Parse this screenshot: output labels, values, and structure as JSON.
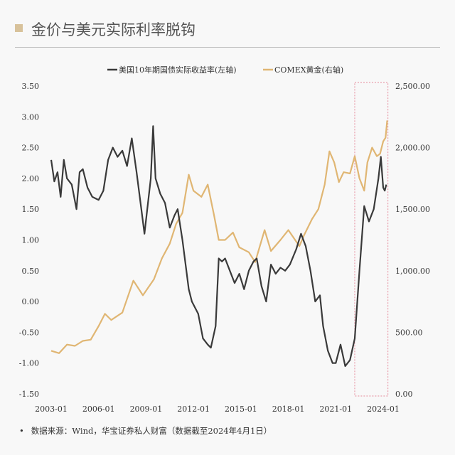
{
  "header": {
    "title": "金价与美元实际利率脱钩"
  },
  "footer": {
    "bullet": "•",
    "source": "数据来源：Wind，华宝证券私人财富（数据截至2024年4月1日）"
  },
  "colors": {
    "real_rate": "#3a3a3a",
    "gold": "#e0b673",
    "highlight": "#e58a9a",
    "accent": "#d8c29b"
  },
  "chart_data": {
    "type": "line",
    "title": "金价与美元实际利率脱钩",
    "x_ticks": [
      "2003-01",
      "2006-01",
      "2009-01",
      "2012-01",
      "2015-01",
      "2018-01",
      "2021-01",
      "2024-01"
    ],
    "x_tick_values": [
      2003,
      2006,
      2009,
      2012,
      2015,
      2018,
      2021,
      2024
    ],
    "xlim": [
      2003,
      2024.25
    ],
    "left_axis": {
      "ylim": [
        -1.5,
        3.5
      ],
      "ticks": [
        "3.50",
        "3.00",
        "2.50",
        "2.00",
        "1.50",
        "1.00",
        "0.50",
        "0.00",
        "-0.50",
        "-1.00",
        "-1.50"
      ],
      "tick_values": [
        3.5,
        3,
        2.5,
        2,
        1.5,
        1,
        0.5,
        0,
        -0.5,
        -1,
        -1.5
      ]
    },
    "right_axis": {
      "ylim": [
        0,
        2500
      ],
      "ticks": [
        "2,500.00",
        "2,000.00",
        "1,500.00",
        "1,000.00",
        "500.00",
        "0.00"
      ],
      "tick_values": [
        2500,
        2000,
        1500,
        1000,
        500,
        0
      ]
    },
    "legend_position": "top-center",
    "highlight_range": [
      2022.2,
      2024.3
    ],
    "series": [
      {
        "name": "美国10年期国债实际收益率(左轴)",
        "axis": "left",
        "x": [
          2003.0,
          2003.2,
          2003.4,
          2003.6,
          2003.8,
          2004.0,
          2004.3,
          2004.6,
          2004.8,
          2005.0,
          2005.3,
          2005.6,
          2006.0,
          2006.3,
          2006.6,
          2006.9,
          2007.2,
          2007.5,
          2007.8,
          2008.1,
          2008.4,
          2008.7,
          2008.9,
          2009.3,
          2009.45,
          2009.6,
          2009.9,
          2010.2,
          2010.5,
          2010.8,
          2011.0,
          2011.3,
          2011.7,
          2011.9,
          2012.3,
          2012.6,
          2012.9,
          2013.1,
          2013.4,
          2013.6,
          2013.8,
          2014.0,
          2014.3,
          2014.6,
          2014.9,
          2015.2,
          2015.5,
          2015.8,
          2016.0,
          2016.3,
          2016.6,
          2016.9,
          2017.2,
          2017.5,
          2017.8,
          2018.1,
          2018.5,
          2018.8,
          2019.1,
          2019.4,
          2019.7,
          2020.0,
          2020.2,
          2020.5,
          2020.8,
          2021.0,
          2021.3,
          2021.6,
          2021.9,
          2022.2,
          2022.5,
          2022.8,
          2023.1,
          2023.4,
          2023.7,
          2023.85,
          2024.0,
          2024.1,
          2024.2
        ],
        "values": [
          2.3,
          1.95,
          2.1,
          1.7,
          2.3,
          2.0,
          1.9,
          1.5,
          2.1,
          2.15,
          1.85,
          1.7,
          1.65,
          1.8,
          2.3,
          2.5,
          2.35,
          2.45,
          2.2,
          2.65,
          2.1,
          1.5,
          1.1,
          2.0,
          2.85,
          2.0,
          1.75,
          1.6,
          1.2,
          1.4,
          1.5,
          1.0,
          0.2,
          0.0,
          -0.2,
          -0.6,
          -0.7,
          -0.75,
          -0.4,
          0.7,
          0.65,
          0.7,
          0.5,
          0.3,
          0.45,
          0.2,
          0.5,
          0.65,
          0.7,
          0.25,
          0.0,
          0.6,
          0.45,
          0.55,
          0.5,
          0.6,
          0.85,
          1.1,
          0.9,
          0.5,
          0.0,
          0.1,
          -0.4,
          -0.8,
          -1.0,
          -1.0,
          -0.7,
          -1.05,
          -0.95,
          -0.6,
          0.5,
          1.55,
          1.3,
          1.5,
          2.0,
          2.35,
          1.85,
          1.8,
          1.9
        ]
      },
      {
        "name": "COMEX黄金(右轴)",
        "axis": "right",
        "x": [
          2003.0,
          2003.5,
          2004.0,
          2004.5,
          2005.0,
          2005.5,
          2006.0,
          2006.4,
          2006.8,
          2007.5,
          2008.2,
          2008.8,
          2009.5,
          2010.0,
          2010.5,
          2010.9,
          2011.3,
          2011.7,
          2012.0,
          2012.5,
          2012.9,
          2013.3,
          2013.6,
          2014.0,
          2014.5,
          2014.9,
          2015.5,
          2015.9,
          2016.5,
          2016.9,
          2017.5,
          2018.0,
          2018.7,
          2019.0,
          2019.5,
          2019.9,
          2020.3,
          2020.6,
          2020.9,
          2021.2,
          2021.5,
          2021.9,
          2022.2,
          2022.5,
          2022.8,
          2023.0,
          2023.3,
          2023.6,
          2023.8,
          2024.0,
          2024.15,
          2024.25
        ],
        "values": [
          350,
          330,
          400,
          390,
          430,
          440,
          550,
          650,
          600,
          660,
          920,
          800,
          930,
          1100,
          1220,
          1380,
          1470,
          1780,
          1650,
          1600,
          1700,
          1450,
          1250,
          1250,
          1310,
          1190,
          1150,
          1070,
          1330,
          1160,
          1250,
          1330,
          1200,
          1290,
          1420,
          1500,
          1700,
          1970,
          1880,
          1720,
          1800,
          1790,
          1930,
          1750,
          1650,
          1880,
          2000,
          1930,
          1950,
          2050,
          2080,
          2220
        ]
      }
    ]
  }
}
